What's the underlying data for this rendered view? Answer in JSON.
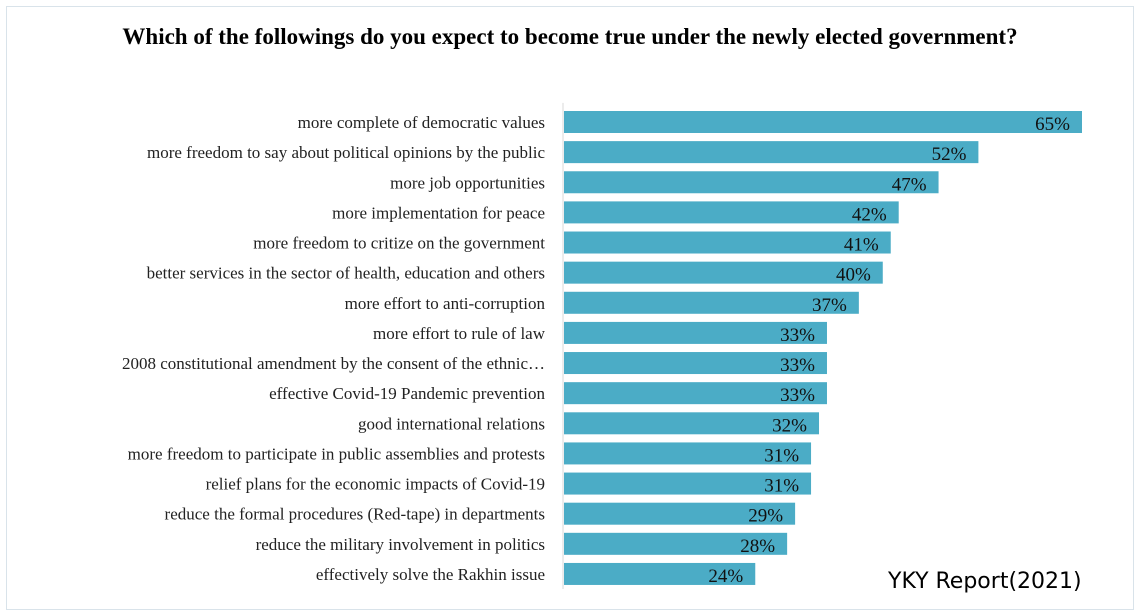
{
  "chart_data": {
    "type": "bar",
    "orientation": "horizontal",
    "title": "Which of the followings do you expect to become true under the newly elected government?",
    "categories": [
      "more complete of democratic values",
      "more freedom to say about political opinions by the public",
      "more job opportunities",
      "more implementation for peace",
      "more freedom to critize on the government",
      "better services in the sector of health, education and others",
      "more effort to anti-corruption",
      "more effort to rule of law",
      "2008 constitutional amendment by the consent of the ethnic…",
      "effective Covid-19 Pandemic prevention",
      "good international relations",
      "more freedom to participate in public assemblies and protests",
      "relief plans for the economic impacts of Covid-19",
      "reduce the formal procedures (Red-tape) in departments",
      "reduce the military involvement in politics",
      "effectively solve the Rakhin issue"
    ],
    "values": [
      65,
      52,
      47,
      42,
      41,
      40,
      37,
      33,
      33,
      33,
      32,
      31,
      31,
      29,
      28,
      24
    ],
    "value_labels": [
      "65%",
      "52%",
      "47%",
      "42%",
      "41%",
      "40%",
      "37%",
      "33%",
      "33%",
      "33%",
      "32%",
      "31%",
      "31%",
      "29%",
      "28%",
      "24%"
    ],
    "bar_color": "#4bacc6",
    "xlim": [
      0,
      65
    ],
    "grid": false,
    "legend": "none"
  },
  "source_note": "YKY Report(2021)"
}
